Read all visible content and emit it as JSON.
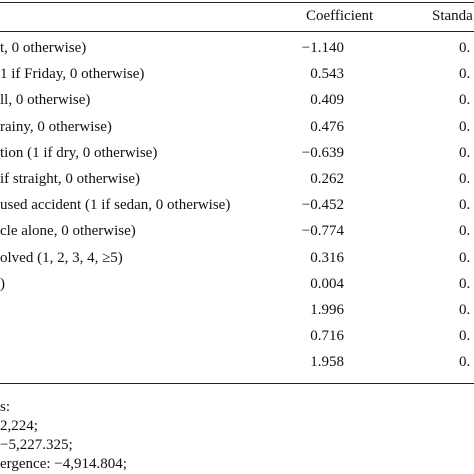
{
  "table": {
    "headers": {
      "coefficient": "Coefficient",
      "std_error": "Standa"
    },
    "rows": [
      {
        "variable": "t, 0 otherwise)",
        "coefficient": "−1.140",
        "std_error": "0."
      },
      {
        "variable": "1 if Friday, 0 otherwise)",
        "coefficient": "0.543",
        "std_error": "0."
      },
      {
        "variable": "ll, 0 otherwise)",
        "coefficient": "0.409",
        "std_error": "0."
      },
      {
        "variable": " rainy, 0 otherwise)",
        "coefficient": "0.476",
        "std_error": "0."
      },
      {
        "variable": "tion (1 if dry, 0 otherwise)",
        "coefficient": "−0.639",
        "std_error": "0."
      },
      {
        "variable": " if straight, 0 otherwise)",
        "coefficient": "0.262",
        "std_error": "0."
      },
      {
        "variable": "used accident (1 if sedan, 0 otherwise)",
        "coefficient": "−0.452",
        "std_error": "0."
      },
      {
        "variable": "cle alone, 0 otherwise)",
        "coefficient": "−0.774",
        "std_error": "0."
      },
      {
        "variable": "olved (1, 2, 3, 4, ≥5)",
        "coefficient": "0.316",
        "std_error": "0."
      },
      {
        "variable": ")",
        "coefficient": "0.004",
        "std_error": "0."
      },
      {
        "variable": "",
        "coefficient": "1.996",
        "std_error": "0."
      },
      {
        "variable": "",
        "coefficient": "0.716",
        "std_error": "0."
      },
      {
        "variable": "",
        "coefficient": "1.958",
        "std_error": "0."
      }
    ]
  },
  "notes": [
    "s:",
    "2,224;",
    "−5,227.325;",
    "ergence: −4,914.804;"
  ]
}
